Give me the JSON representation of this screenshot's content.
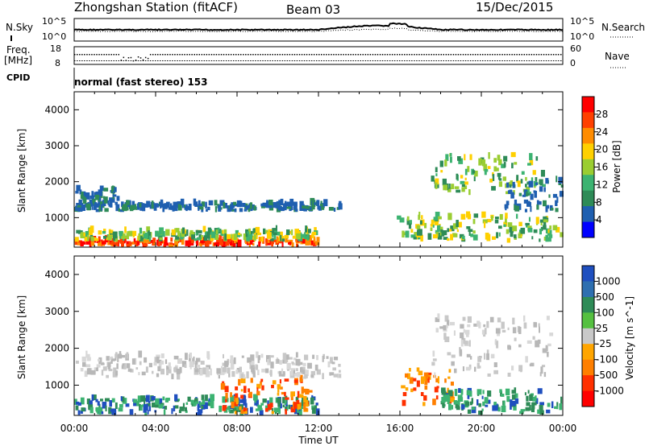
{
  "header": {
    "station": "Zhongshan Station (fitACF)",
    "beam": "Beam 03",
    "date": "15/Dec/2015"
  },
  "strips": {
    "nsky_label": "N.Sky",
    "nsky_ticks": [
      "10^5",
      "10^0"
    ],
    "nsearch_ticks": [
      "10^5",
      "10^0"
    ],
    "nsearch_label": "N.Search",
    "freq_label": "Freq.",
    "freq_unit": "[MHz]",
    "freq_ticks": [
      "18",
      "8"
    ],
    "nave_ticks": [
      "60",
      "0"
    ],
    "nave_label": "Nave",
    "cpid_label": "CPID",
    "cpid_value": "normal (fast stereo) 153"
  },
  "chart_data": [
    {
      "type": "heatmap",
      "name": "power",
      "ylabel": "Slant Range [km]",
      "xlabel": "Time UT",
      "x_ticks": [
        "00:00",
        "04:00",
        "08:00",
        "12:00",
        "16:00",
        "20:00",
        "00:00"
      ],
      "xlim_hours": [
        0,
        24
      ],
      "y_ticks": [
        1000,
        2000,
        3000,
        4000
      ],
      "ylim": [
        180,
        4500
      ],
      "colorbar": {
        "label": "Power [dB]",
        "ticks": [
          "28",
          "24",
          "20",
          "16",
          "12",
          "8",
          "4"
        ],
        "colors": [
          "#ff0000",
          "#ff4000",
          "#ff8c00",
          "#ffd000",
          "#9acd32",
          "#3cb371",
          "#2e8b57",
          "#1f5fb0",
          "#0000ff"
        ]
      },
      "echo_regions": [
        {
          "t0": 0.0,
          "t1": 12.0,
          "r0": 180,
          "r1": 330,
          "level": "high"
        },
        {
          "t0": 0.0,
          "t1": 12.0,
          "r0": 330,
          "r1": 600,
          "level": "medium"
        },
        {
          "t0": 0.0,
          "t1": 13.0,
          "r0": 1150,
          "r1": 1350,
          "level": "low"
        },
        {
          "t0": 0.0,
          "t1": 2.2,
          "r0": 1350,
          "r1": 1750,
          "level": "low"
        },
        {
          "t0": 15.8,
          "t1": 24.0,
          "r0": 300,
          "r1": 1000,
          "level": "medium"
        },
        {
          "t0": 17.5,
          "t1": 23.0,
          "r0": 1600,
          "r1": 2700,
          "level": "medium"
        },
        {
          "t0": 21.0,
          "t1": 24.0,
          "r0": 1100,
          "r1": 2000,
          "level": "low"
        }
      ]
    },
    {
      "type": "heatmap",
      "name": "velocity",
      "ylabel": "Slant Range [km]",
      "xlabel": "Time UT",
      "x_ticks": [
        "00:00",
        "04:00",
        "08:00",
        "12:00",
        "16:00",
        "20:00",
        "00:00"
      ],
      "xlim_hours": [
        0,
        24
      ],
      "y_ticks": [
        1000,
        2000,
        3000,
        4000
      ],
      "ylim": [
        180,
        4500
      ],
      "colorbar": {
        "label": "Velocity [m s^-1]",
        "ticks": [
          "1000",
          "500",
          "100",
          "25",
          "-25",
          "-100",
          "-500",
          "-1000"
        ],
        "colors": [
          "#1f4fbf",
          "#2e6fb0",
          "#2e8b57",
          "#55c040",
          "#c8c8c8",
          "#ffa500",
          "#ff7f00",
          "#ff3000",
          "#ff0000"
        ]
      },
      "echo_regions": [
        {
          "t0": 0.0,
          "t1": 12.0,
          "r0": 180,
          "r1": 600,
          "level": "green"
        },
        {
          "t0": 7.0,
          "t1": 11.5,
          "r0": 200,
          "r1": 1100,
          "level": "orange"
        },
        {
          "t0": 0.0,
          "t1": 13.0,
          "r0": 1150,
          "r1": 1750,
          "level": "grey"
        },
        {
          "t0": 16.0,
          "t1": 18.5,
          "r0": 400,
          "r1": 1400,
          "level": "orange"
        },
        {
          "t0": 18.0,
          "t1": 24.0,
          "r0": 200,
          "r1": 800,
          "level": "green"
        },
        {
          "t0": 17.5,
          "t1": 23.5,
          "r0": 1200,
          "r1": 2800,
          "level": "grey"
        }
      ]
    }
  ]
}
